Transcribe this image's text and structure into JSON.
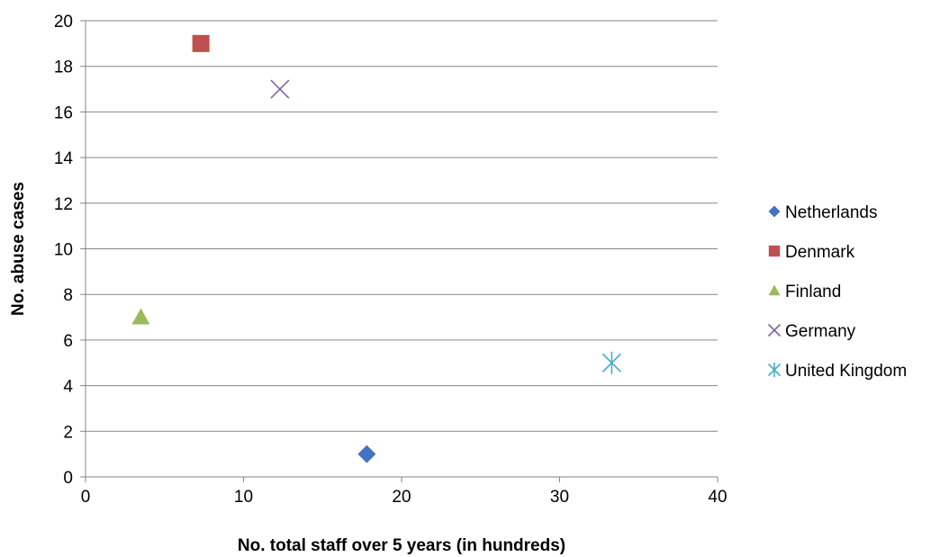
{
  "chart_data": {
    "type": "scatter",
    "title": "",
    "xlabel": "No. total staff over 5 years (in hundreds)",
    "ylabel": "No. abuse cases",
    "xlim": [
      0,
      40
    ],
    "ylim": [
      0,
      20
    ],
    "xticks": [
      0,
      10,
      20,
      30,
      40
    ],
    "yticks": [
      0,
      2,
      4,
      6,
      8,
      10,
      12,
      14,
      16,
      18,
      20
    ],
    "grid": "horizontal",
    "legend_position": "right",
    "series": [
      {
        "name": "Netherlands",
        "marker": "diamond",
        "color": "#4472C4",
        "points": [
          {
            "x": 17.8,
            "y": 1
          }
        ]
      },
      {
        "name": "Denmark",
        "marker": "square",
        "color": "#C0504D",
        "points": [
          {
            "x": 7.3,
            "y": 19
          }
        ]
      },
      {
        "name": "Finland",
        "marker": "triangle",
        "color": "#9BBB59",
        "points": [
          {
            "x": 3.5,
            "y": 7
          }
        ]
      },
      {
        "name": "Germany",
        "marker": "x",
        "color": "#8064A2",
        "points": [
          {
            "x": 12.3,
            "y": 17
          }
        ]
      },
      {
        "name": "United Kingdom",
        "marker": "star",
        "color": "#4BACC6",
        "points": [
          {
            "x": 33.3,
            "y": 5
          }
        ]
      }
    ]
  }
}
